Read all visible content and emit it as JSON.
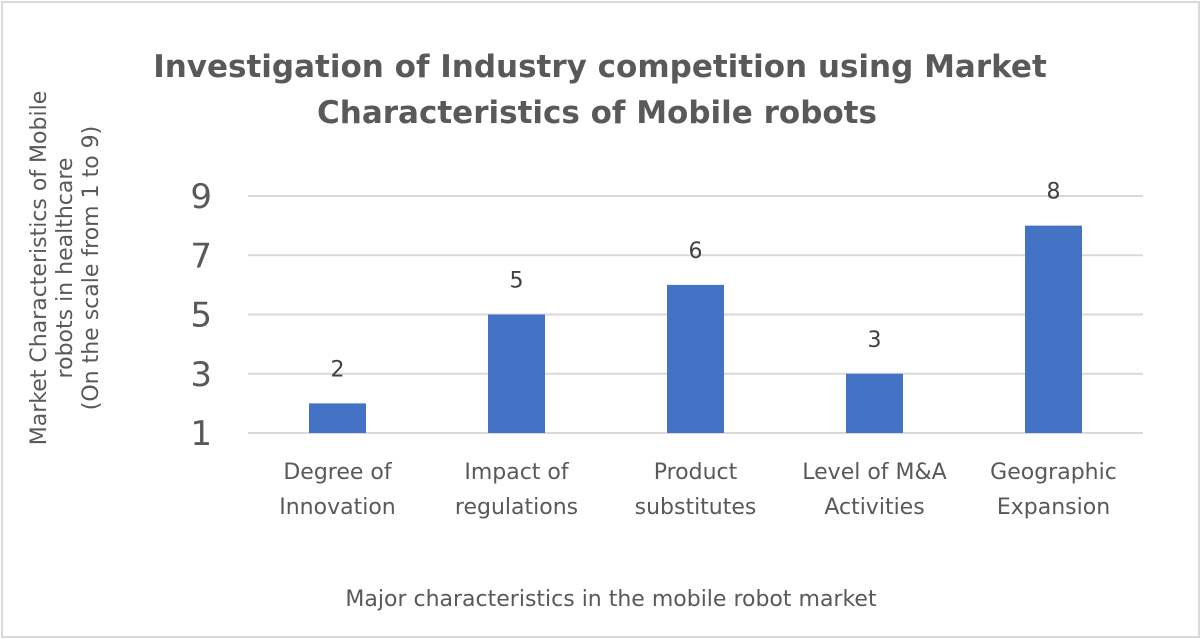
{
  "chart_data": {
    "type": "bar",
    "title": "Investigation of Industry competition using Market Characteristics of Mobile robots",
    "title_lines": [
      "Investigation of Industry competition using Market",
      "Characteristics of Mobile robots"
    ],
    "categories": [
      "Degree of Innovation",
      "Impact of regulations",
      "Product substitutes",
      "Level of M&A Activities",
      "Geographic Expansion"
    ],
    "category_lines": [
      [
        "Degree of",
        "Innovation"
      ],
      [
        "Impact of",
        "regulations"
      ],
      [
        "Product",
        "substitutes"
      ],
      [
        "Level of M&A",
        "Activities"
      ],
      [
        "Geographic",
        "Expansion"
      ]
    ],
    "values": [
      2,
      5,
      6,
      3,
      8
    ],
    "data_labels": [
      "2",
      "5",
      "6",
      "3",
      "8"
    ],
    "xlabel": "Major characteristics in the mobile robot market",
    "ylabel": "Market Characteristics of Mobile robots in healthcare (On the scale from 1 to 9)",
    "ylabel_lines": [
      "Market Characteristics of Mobile",
      "robots in healthcare",
      "(On the scale from 1 to 9)"
    ],
    "yticks": [
      "1",
      "3",
      "5",
      "7",
      "9"
    ],
    "ylim": [
      1,
      9
    ],
    "grid": true,
    "legend": "none",
    "colors": {
      "bar": "#4472c4",
      "grid": "#d9d9d9",
      "text": "#595959"
    }
  }
}
